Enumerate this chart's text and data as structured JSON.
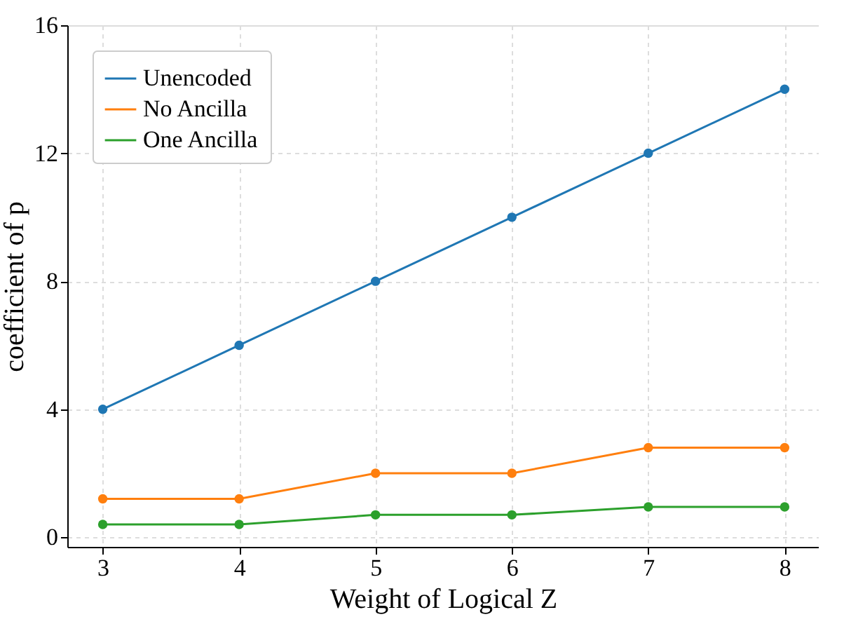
{
  "chart_data": {
    "type": "line",
    "xlabel": "Weight of Logical Z",
    "ylabel": "coefficient of p",
    "x": [
      3,
      4,
      5,
      6,
      7,
      8
    ],
    "series": [
      {
        "name": "Unencoded",
        "color": "#1f77b4",
        "values": [
          4,
          6,
          8,
          10,
          12,
          14
        ]
      },
      {
        "name": "No Ancilla",
        "color": "#ff7f0e",
        "values": [
          1.2,
          1.2,
          2,
          2,
          2.8,
          2.8
        ]
      },
      {
        "name": "One Ancilla",
        "color": "#2ca02c",
        "values": [
          0.4,
          0.4,
          0.7,
          0.7,
          0.95,
          0.95
        ]
      }
    ],
    "xlim": [
      2.74,
      8.25
    ],
    "ylim": [
      -0.3,
      16
    ],
    "xticks": [
      3,
      4,
      5,
      6,
      7,
      8
    ],
    "yticks": [
      0,
      4,
      8,
      12,
      16
    ],
    "grid": true,
    "legend": "top left",
    "marker": "circle",
    "line_style": "solid"
  }
}
